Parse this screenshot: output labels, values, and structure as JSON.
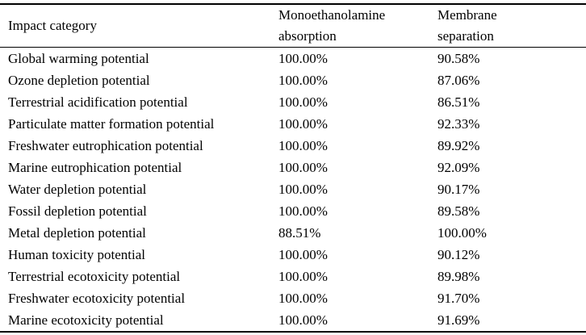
{
  "page": {
    "background_color": "#ffffff",
    "text_color": "#000000",
    "rule_color": "#000000"
  },
  "table": {
    "columns": [
      {
        "label": "Impact category",
        "lines": [
          "Impact category"
        ]
      },
      {
        "label": "Monoethanolamine absorption",
        "lines": [
          "Monoethanolamine",
          "absorption"
        ]
      },
      {
        "label": "Membrane separation",
        "lines": [
          "Membrane",
          "separation"
        ]
      }
    ],
    "rows": [
      {
        "category": "Global warming potential",
        "mea": "100.00%",
        "membrane": "90.58%"
      },
      {
        "category": "Ozone depletion potential",
        "mea": "100.00%",
        "membrane": "87.06%"
      },
      {
        "category": "Terrestrial acidification potential",
        "mea": "100.00%",
        "membrane": "86.51%"
      },
      {
        "category": "Particulate matter formation potential",
        "mea": "100.00%",
        "membrane": "92.33%"
      },
      {
        "category": "Freshwater eutrophication potential",
        "mea": "100.00%",
        "membrane": "89.92%"
      },
      {
        "category": "Marine eutrophication potential",
        "mea": "100.00%",
        "membrane": "92.09%"
      },
      {
        "category": "Water depletion potential",
        "mea": "100.00%",
        "membrane": "90.17%"
      },
      {
        "category": "Fossil depletion potential",
        "mea": "100.00%",
        "membrane": "89.58%"
      },
      {
        "category": "Metal depletion potential",
        "mea": "88.51%",
        "membrane": "100.00%"
      },
      {
        "category": "Human toxicity potential",
        "mea": "100.00%",
        "membrane": "90.12%"
      },
      {
        "category": "Terrestrial ecotoxicity potential",
        "mea": "100.00%",
        "membrane": "89.98%"
      },
      {
        "category": "Freshwater ecotoxicity potential",
        "mea": "100.00%",
        "membrane": "91.70%"
      },
      {
        "category": "Marine ecotoxicity potential",
        "mea": "100.00%",
        "membrane": "91.69%"
      }
    ]
  }
}
